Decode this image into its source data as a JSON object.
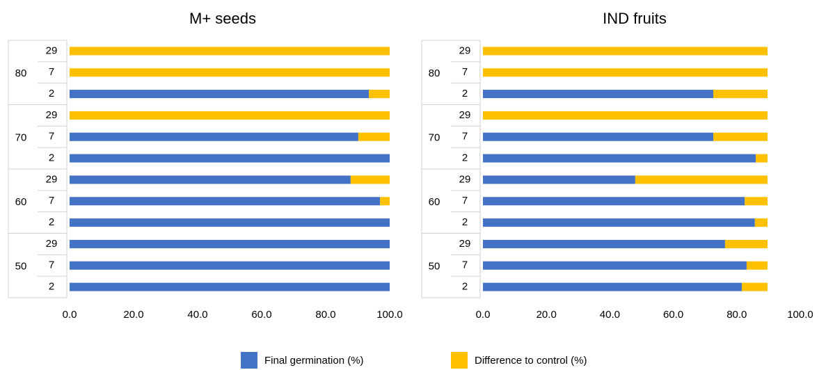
{
  "chart_data": [
    {
      "type": "stacked-barh",
      "title": "M+ seeds",
      "groups": [
        "80",
        "70",
        "60",
        "50"
      ],
      "categories": [
        "29",
        "7",
        "2",
        "29",
        "7",
        "2",
        "29",
        "7",
        "2",
        "29",
        "7",
        "2"
      ],
      "series": [
        {
          "name": "Final germination (%)",
          "color": "#4472c4",
          "values": [
            0,
            0,
            93.5,
            0,
            90.2,
            100,
            87.8,
            97.0,
            100,
            100,
            100,
            100
          ]
        },
        {
          "name": "Difference to control  (%)",
          "color": "#ffc000",
          "values": [
            100,
            100,
            6.5,
            100,
            9.8,
            0,
            12.2,
            3.0,
            0,
            0,
            0,
            0
          ]
        }
      ],
      "xlim": [
        0,
        100
      ],
      "xticks": [
        {
          "value": 0,
          "label": "0.0"
        },
        {
          "value": 20,
          "label": "20.0"
        },
        {
          "value": 40,
          "label": "40.0"
        },
        {
          "value": 60,
          "label": "60.0"
        },
        {
          "value": 80,
          "label": "80.0"
        },
        {
          "value": 100,
          "label": "100.0"
        }
      ]
    },
    {
      "type": "stacked-barh",
      "title": "IND fruits",
      "groups": [
        "80",
        "70",
        "60",
        "50"
      ],
      "categories": [
        "29",
        "7",
        "2",
        "29",
        "7",
        "2",
        "29",
        "7",
        "2",
        "29",
        "7",
        "2"
      ],
      "series": [
        {
          "name": "Final germination (%)",
          "color": "#4472c4",
          "values": [
            0,
            0,
            72.6,
            0,
            72.6,
            86.0,
            48.0,
            82.5,
            85.7,
            76.3,
            83.1,
            81.6
          ]
        },
        {
          "name": "Difference to control  (%)",
          "color": "#ffc000",
          "values": [
            89.7,
            89.7,
            17.1,
            89.7,
            17.1,
            3.7,
            41.7,
            7.2,
            4.0,
            13.4,
            6.6,
            8.1
          ]
        }
      ],
      "xlim": [
        0,
        100
      ],
      "xticks": [
        {
          "value": 0,
          "label": "0.0"
        },
        {
          "value": 20,
          "label": "20.0"
        },
        {
          "value": 40,
          "label": "40.0"
        },
        {
          "value": 60,
          "label": "60.0"
        },
        {
          "value": 80,
          "label": "80.0"
        },
        {
          "value": 100,
          "label": "100.0"
        }
      ]
    }
  ]
}
